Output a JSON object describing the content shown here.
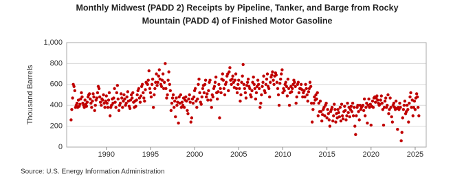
{
  "chart_data": {
    "type": "scatter",
    "title": "Monthly Midwest (PADD 2) Receipts by Pipeline, Tanker, and Barge from Rocky Mountain (PADD 4) of Finished Motor Gasoline",
    "y_label": "Thousand Barrels",
    "source": "Source: U.S. Energy Information Administration",
    "color": "#c00000",
    "grid": true,
    "xlim": [
      1985.5,
      2026.25
    ],
    "xticks": [
      1990,
      1995,
      2000,
      2005,
      2010,
      2015,
      2020,
      2025
    ],
    "ylim": [
      0,
      1000
    ],
    "yticks": [
      0,
      200,
      400,
      600,
      800,
      {
        "value": 1000,
        "label": "1,000"
      }
    ],
    "x": [
      1986.0,
      1986.08,
      1986.17,
      1986.25,
      1986.33,
      1986.42,
      1986.5,
      1986.58,
      1986.67,
      1986.75,
      1986.83,
      1986.92,
      1987.0,
      1987.08,
      1987.17,
      1987.25,
      1987.33,
      1987.42,
      1987.5,
      1987.58,
      1987.67,
      1987.75,
      1987.83,
      1987.92,
      1988.0,
      1988.08,
      1988.17,
      1988.25,
      1988.33,
      1988.42,
      1988.5,
      1988.58,
      1988.67,
      1988.75,
      1988.83,
      1988.92,
      1989.0,
      1989.08,
      1989.17,
      1989.25,
      1989.33,
      1989.42,
      1989.5,
      1989.58,
      1989.67,
      1989.75,
      1989.83,
      1989.92,
      1990.0,
      1990.08,
      1990.17,
      1990.25,
      1990.33,
      1990.42,
      1990.5,
      1990.58,
      1990.67,
      1990.75,
      1990.83,
      1990.92,
      1991.0,
      1991.08,
      1991.17,
      1991.25,
      1991.33,
      1991.42,
      1991.5,
      1991.58,
      1991.67,
      1991.75,
      1991.83,
      1991.92,
      1992.0,
      1992.08,
      1992.17,
      1992.25,
      1992.33,
      1992.42,
      1992.5,
      1992.58,
      1992.67,
      1992.75,
      1992.83,
      1992.92,
      1993.0,
      1993.08,
      1993.17,
      1993.25,
      1993.33,
      1993.42,
      1993.5,
      1993.58,
      1993.67,
      1993.75,
      1993.83,
      1993.92,
      1994.0,
      1994.08,
      1994.17,
      1994.25,
      1994.33,
      1994.42,
      1994.5,
      1994.58,
      1994.67,
      1994.75,
      1994.83,
      1994.92,
      1995.0,
      1995.08,
      1995.17,
      1995.25,
      1995.33,
      1995.42,
      1995.5,
      1995.58,
      1995.67,
      1995.75,
      1995.83,
      1995.92,
      1996.0,
      1996.08,
      1996.17,
      1996.25,
      1996.33,
      1996.42,
      1996.5,
      1996.58,
      1996.67,
      1996.75,
      1996.83,
      1996.92,
      1997.0,
      1997.08,
      1997.17,
      1997.25,
      1997.33,
      1997.42,
      1997.5,
      1997.58,
      1997.67,
      1997.75,
      1997.83,
      1997.92,
      1998.0,
      1998.08,
      1998.17,
      1998.25,
      1998.33,
      1998.42,
      1998.5,
      1998.58,
      1998.67,
      1998.75,
      1998.83,
      1998.92,
      1999.0,
      1999.08,
      1999.17,
      1999.25,
      1999.33,
      1999.42,
      1999.5,
      1999.58,
      1999.67,
      1999.75,
      1999.83,
      1999.92,
      2000.0,
      2000.08,
      2000.17,
      2000.25,
      2000.33,
      2000.42,
      2000.5,
      2000.58,
      2000.67,
      2000.75,
      2000.83,
      2000.92,
      2001.0,
      2001.08,
      2001.17,
      2001.25,
      2001.33,
      2001.42,
      2001.5,
      2001.58,
      2001.67,
      2001.75,
      2001.83,
      2001.92,
      2002.0,
      2002.08,
      2002.17,
      2002.25,
      2002.33,
      2002.42,
      2002.5,
      2002.58,
      2002.67,
      2002.75,
      2002.83,
      2002.92,
      2003.0,
      2003.08,
      2003.17,
      2003.25,
      2003.33,
      2003.42,
      2003.5,
      2003.58,
      2003.67,
      2003.75,
      2003.83,
      2003.92,
      2004.0,
      2004.08,
      2004.17,
      2004.25,
      2004.33,
      2004.42,
      2004.5,
      2004.58,
      2004.67,
      2004.75,
      2004.83,
      2004.92,
      2005.0,
      2005.08,
      2005.17,
      2005.25,
      2005.33,
      2005.42,
      2005.5,
      2005.58,
      2005.67,
      2005.75,
      2005.83,
      2005.92,
      2006.0,
      2006.08,
      2006.17,
      2006.25,
      2006.33,
      2006.42,
      2006.5,
      2006.58,
      2006.67,
      2006.75,
      2006.83,
      2006.92,
      2007.0,
      2007.08,
      2007.17,
      2007.25,
      2007.33,
      2007.42,
      2007.5,
      2007.58,
      2007.67,
      2007.75,
      2007.83,
      2007.92,
      2008.0,
      2008.08,
      2008.17,
      2008.25,
      2008.33,
      2008.42,
      2008.5,
      2008.58,
      2008.67,
      2008.75,
      2008.83,
      2008.92,
      2009.0,
      2009.08,
      2009.17,
      2009.25,
      2009.33,
      2009.42,
      2009.5,
      2009.58,
      2009.67,
      2009.75,
      2009.83,
      2009.92,
      2010.0,
      2010.08,
      2010.17,
      2010.25,
      2010.33,
      2010.42,
      2010.5,
      2010.58,
      2010.67,
      2010.75,
      2010.83,
      2010.92,
      2011.0,
      2011.08,
      2011.17,
      2011.25,
      2011.33,
      2011.42,
      2011.5,
      2011.58,
      2011.67,
      2011.75,
      2011.83,
      2011.92,
      2012.0,
      2012.08,
      2012.17,
      2012.25,
      2012.33,
      2012.42,
      2012.5,
      2012.58,
      2012.67,
      2012.75,
      2012.83,
      2012.92,
      2013.0,
      2013.08,
      2013.17,
      2013.25,
      2013.33,
      2013.42,
      2013.5,
      2013.58,
      2013.67,
      2013.75,
      2013.83,
      2013.92,
      2014.0,
      2014.08,
      2014.17,
      2014.25,
      2014.33,
      2014.42,
      2014.5,
      2014.58,
      2014.67,
      2014.75,
      2014.83,
      2014.92,
      2015.0,
      2015.08,
      2015.17,
      2015.25,
      2015.33,
      2015.42,
      2015.5,
      2015.58,
      2015.67,
      2015.75,
      2015.83,
      2015.92,
      2016.0,
      2016.08,
      2016.17,
      2016.25,
      2016.33,
      2016.42,
      2016.5,
      2016.58,
      2016.67,
      2016.75,
      2016.83,
      2016.92,
      2017.0,
      2017.08,
      2017.17,
      2017.25,
      2017.33,
      2017.42,
      2017.5,
      2017.58,
      2017.67,
      2017.75,
      2017.83,
      2017.92,
      2018.0,
      2018.08,
      2018.17,
      2018.25,
      2018.33,
      2018.42,
      2018.5,
      2018.58,
      2018.67,
      2018.75,
      2018.83,
      2018.92,
      2019.0,
      2019.08,
      2019.17,
      2019.25,
      2019.33,
      2019.42,
      2019.5,
      2019.58,
      2019.67,
      2019.75,
      2019.83,
      2019.92,
      2020.0,
      2020.08,
      2020.17,
      2020.25,
      2020.33,
      2020.42,
      2020.5,
      2020.58,
      2020.67,
      2020.75,
      2020.83,
      2020.92,
      2021.0,
      2021.08,
      2021.17,
      2021.25,
      2021.33,
      2021.42,
      2021.5,
      2021.58,
      2021.67,
      2021.75,
      2021.83,
      2021.92,
      2022.0,
      2022.08,
      2022.17,
      2022.25,
      2022.33,
      2022.42,
      2022.5,
      2022.58,
      2022.67,
      2022.75,
      2022.83,
      2022.92,
      2023.0,
      2023.08,
      2023.17,
      2023.25,
      2023.33,
      2023.42,
      2023.5,
      2023.58,
      2023.67,
      2023.75,
      2023.83,
      2023.92,
      2024.0,
      2024.08,
      2024.17,
      2024.25,
      2024.33,
      2024.42,
      2024.5,
      2024.58,
      2024.67,
      2024.75,
      2024.83,
      2024.92,
      2025.0,
      2025.08,
      2025.17,
      2025.25,
      2025.33,
      2025.42
    ],
    "values": [
      260,
      360,
      470,
      600,
      580,
      540,
      380,
      400,
      420,
      380,
      450,
      390,
      410,
      460,
      520,
      480,
      420,
      400,
      380,
      450,
      410,
      390,
      430,
      480,
      500,
      510,
      460,
      420,
      380,
      440,
      510,
      480,
      350,
      400,
      450,
      470,
      520,
      580,
      560,
      480,
      430,
      400,
      460,
      450,
      500,
      420,
      380,
      440,
      490,
      420,
      380,
      450,
      520,
      300,
      380,
      400,
      460,
      420,
      470,
      560,
      430,
      380,
      520,
      590,
      460,
      350,
      400,
      420,
      510,
      470,
      380,
      440,
      500,
      460,
      400,
      420,
      480,
      530,
      440,
      390,
      370,
      450,
      500,
      470,
      520,
      430,
      380,
      440,
      390,
      450,
      500,
      540,
      560,
      470,
      430,
      490,
      580,
      600,
      520,
      470,
      440,
      550,
      620,
      610,
      600,
      640,
      730,
      560,
      520,
      480,
      600,
      650,
      380,
      500,
      560,
      620,
      700,
      590,
      620,
      680,
      740,
      650,
      600,
      580,
      640,
      700,
      560,
      620,
      800,
      560,
      470,
      500,
      640,
      720,
      600,
      540,
      350,
      420,
      470,
      500,
      380,
      440,
      290,
      470,
      400,
      430,
      230,
      480,
      420,
      500,
      380,
      430,
      400,
      470,
      380,
      450,
      480,
      440,
      350,
      320,
      460,
      500,
      430,
      240,
      280,
      460,
      420,
      480,
      540,
      560,
      440,
      380,
      460,
      600,
      650,
      520,
      430,
      410,
      480,
      560,
      590,
      520,
      600,
      640,
      480,
      510,
      450,
      540,
      620,
      640,
      450,
      380,
      500,
      480,
      560,
      580,
      620,
      670,
      520,
      460,
      530,
      600,
      280,
      560,
      520,
      650,
      700,
      640,
      560,
      500,
      600,
      620,
      680,
      700,
      540,
      720,
      760,
      640,
      600,
      650,
      680,
      620,
      570,
      640,
      700,
      560,
      520,
      600,
      640,
      560,
      440,
      500,
      620,
      680,
      790,
      600,
      560,
      520,
      470,
      590,
      620,
      650,
      580,
      560,
      500,
      480,
      540,
      620,
      670,
      600,
      560,
      460,
      520,
      580,
      640,
      600,
      560,
      380,
      420,
      500,
      580,
      620,
      680,
      540,
      520,
      600,
      650,
      700,
      580,
      560,
      480,
      620,
      670,
      690,
      720,
      640,
      600,
      680,
      710,
      690,
      620,
      560,
      500,
      400,
      610,
      650,
      700,
      740,
      520,
      560,
      540,
      600,
      620,
      580,
      490,
      650,
      560,
      400,
      520,
      580,
      530,
      560,
      600,
      640,
      620,
      580,
      420,
      480,
      600,
      620,
      520,
      560,
      560,
      600,
      550,
      480,
      520,
      540,
      480,
      600,
      560,
      500,
      440,
      530,
      560,
      620,
      580,
      420,
      240,
      360,
      420,
      480,
      450,
      500,
      460,
      520,
      300,
      420,
      340,
      440,
      340,
      250,
      310,
      360,
      380,
      300,
      400,
      420,
      280,
      360,
      320,
      260,
      200,
      340,
      360,
      380,
      250,
      300,
      410,
      360,
      240,
      320,
      280,
      360,
      330,
      290,
      380,
      250,
      410,
      300,
      270,
      340,
      390,
      350,
      260,
      300,
      420,
      330,
      380,
      290,
      360,
      390,
      340,
      420,
      300,
      380,
      200,
      120,
      300,
      380,
      400,
      340,
      260,
      400,
      360,
      380,
      390,
      400,
      350,
      460,
      300,
      380,
      420,
      230,
      400,
      460,
      380,
      410,
      210,
      390,
      440,
      380,
      470,
      480,
      430,
      470,
      490,
      450,
      420,
      400,
      410,
      450,
      490,
      420,
      360,
      210,
      380,
      440,
      470,
      380,
      400,
      500,
      320,
      360,
      470,
      380,
      290,
      240,
      400,
      420,
      380,
      360,
      440,
      370,
      170,
      380,
      360,
      420,
      380,
      60,
      140,
      280,
      360,
      400,
      440,
      320,
      340,
      400,
      360,
      240,
      420,
      480,
      520,
      380,
      450,
      300,
      380,
      440,
      360,
      470,
      510,
      480,
      380,
      300
    ]
  }
}
